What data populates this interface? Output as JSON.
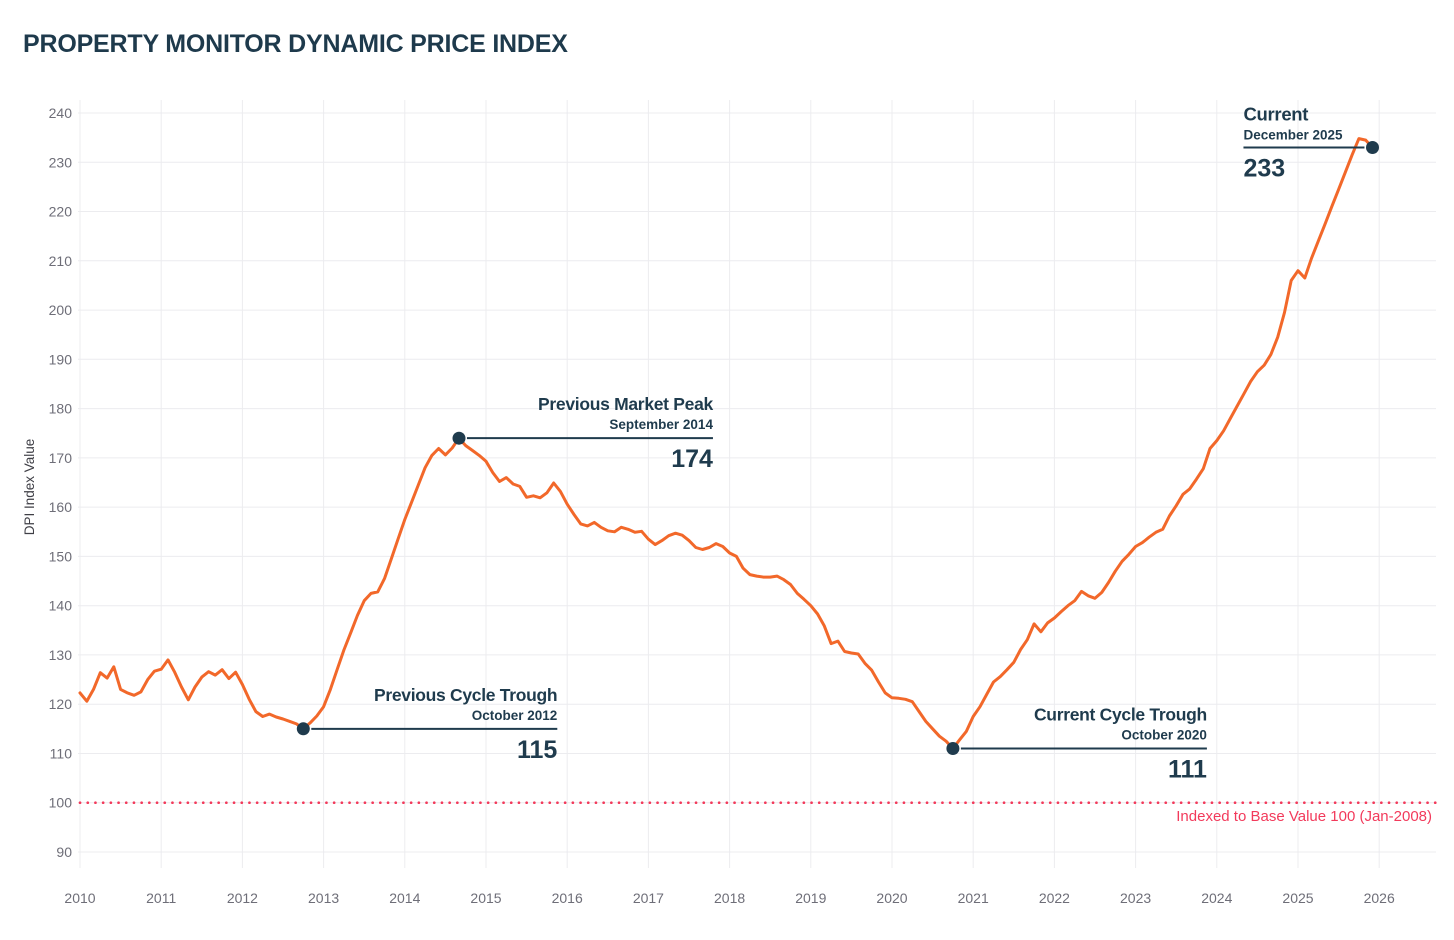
{
  "page": {
    "title": "PROPERTY MONITOR DYNAMIC PRICE INDEX"
  },
  "colors": {
    "line_orange": "#f2682a",
    "navy": "#1f3b4d",
    "baseline_red": "#f23a5b",
    "grid": "#ececef",
    "tick_label": "#6e6e78",
    "axis_title": "#3f3f46",
    "background": "#ffffff"
  },
  "chart_data": {
    "type": "line",
    "title": "PROPERTY MONITOR DYNAMIC PRICE INDEX",
    "xlabel": "",
    "ylabel": "DPI Index Value",
    "grid": true,
    "ylim": [
      85,
      243
    ],
    "y_ticks": [
      90,
      100,
      110,
      120,
      130,
      140,
      150,
      160,
      170,
      180,
      190,
      200,
      210,
      220,
      230,
      240
    ],
    "x_tick_years": [
      2010,
      2011,
      2012,
      2013,
      2014,
      2015,
      2016,
      2017,
      2018,
      2019,
      2020,
      2021,
      2022,
      2023,
      2024,
      2025,
      2026
    ],
    "baseline": {
      "value": 100,
      "label": "Indexed to Base Value 100 (Jan-2008)",
      "style": "dotted",
      "color": "#f23a5b"
    },
    "series": [
      {
        "name": "DPI Index Value",
        "color": "#f2682a",
        "frequency": "monthly",
        "start_month": "2010-01",
        "values": [
          122.3,
          120.6,
          123,
          126.4,
          125.3,
          127.6,
          123,
          122.3,
          121.8,
          122.5,
          125,
          126.7,
          127.1,
          129,
          126.5,
          123.5,
          120.9,
          123.5,
          125.5,
          126.6,
          125.9,
          127,
          125.2,
          126.5,
          124,
          121,
          118.5,
          117.5,
          118,
          117.4,
          117,
          116.5,
          116,
          115,
          116.2,
          117.6,
          119.5,
          123,
          127,
          131,
          134.5,
          138,
          141,
          142.5,
          142.8,
          145.5,
          149.5,
          153.5,
          157.5,
          161,
          164.5,
          168,
          170.5,
          171.9,
          170.6,
          172,
          174,
          172.5,
          171.5,
          170.5,
          169.3,
          167,
          165.2,
          166,
          164.7,
          164.2,
          162,
          162.3,
          161.9,
          162.9,
          164.9,
          163.2,
          160.6,
          158.5,
          156.6,
          156.2,
          156.9,
          155.9,
          155.2,
          155,
          155.9,
          155.5,
          154.9,
          155.1,
          153.5,
          152.4,
          153.2,
          154.2,
          154.7,
          154.3,
          153.2,
          151.8,
          151.4,
          151.8,
          152.6,
          152,
          150.7,
          150,
          147.6,
          146.3,
          146,
          145.8,
          145.8,
          146,
          145.3,
          144.3,
          142.5,
          141.3,
          140,
          138.3,
          135.9,
          132.3,
          132.8,
          130.7,
          130.4,
          130.2,
          128.3,
          126.9,
          124.5,
          122.3,
          121.3,
          121.2,
          121,
          120.5,
          118.5,
          116.5,
          115,
          113.5,
          112.5,
          111,
          112.8,
          114.5,
          117.5,
          119.5,
          122,
          124.5,
          125.6,
          127,
          128.5,
          131.1,
          133.1,
          136.3,
          134.7,
          136.5,
          137.5,
          138.8,
          140,
          141,
          142.9,
          142,
          141.5,
          142.7,
          144.7,
          147,
          149,
          150.4,
          152,
          152.8,
          153.9,
          154.9,
          155.5,
          158.2,
          160.3,
          162.6,
          163.7,
          165.7,
          167.8,
          171.9,
          173.5,
          175.5,
          178,
          180.5,
          183,
          185.5,
          187.5,
          188.8,
          191,
          194.5,
          199.5,
          206,
          208,
          206.5,
          210.5,
          214,
          217.5,
          221,
          224.5,
          228,
          231.5,
          234.8,
          234.5,
          233
        ]
      }
    ],
    "annotations": [
      {
        "label": "Previous Cycle Trough",
        "date": "October 2012",
        "value": 115,
        "year_x": 2012.75
      },
      {
        "label": "Previous Market Peak",
        "date": "September 2014",
        "value": 174,
        "year_x": 2014.667
      },
      {
        "label": "Current Cycle Trough",
        "date": "October 2020",
        "value": 111,
        "year_x": 2020.75
      },
      {
        "label": "Current",
        "date": "December 2025",
        "value": 233,
        "year_x": 2025.917
      }
    ]
  }
}
